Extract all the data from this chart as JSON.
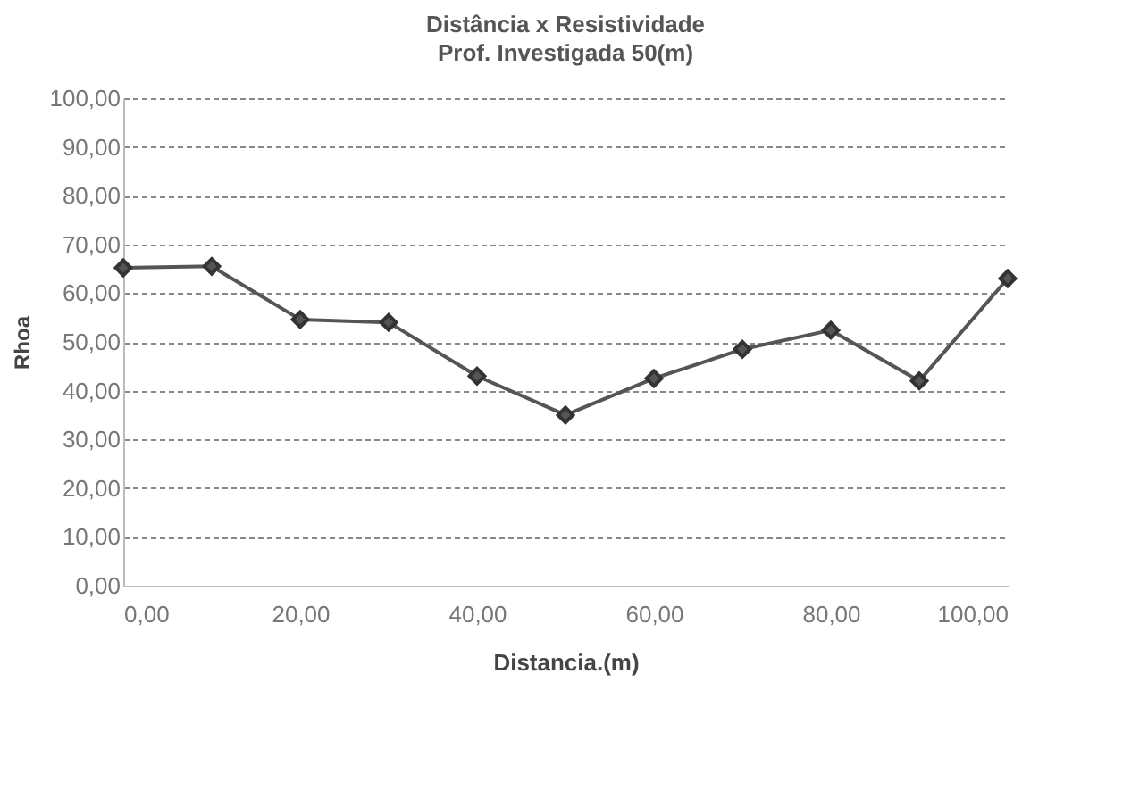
{
  "chart_data": {
    "type": "line",
    "title": "Distância x Resistividade",
    "subtitle": "Prof. Investigada 50(m)",
    "xlabel": "Distancia.(m)",
    "ylabel": "Rhoa",
    "x": [
      0,
      10,
      20,
      30,
      40,
      50,
      60,
      70,
      80,
      90,
      100
    ],
    "series": [
      {
        "color": "#555555",
        "values": [
          65.2,
          65.5,
          54.6,
          54,
          43,
          35,
          42.5,
          48.5,
          52.4,
          42,
          63
        ]
      }
    ],
    "xlim": [
      0,
      100
    ],
    "xticks": [
      {
        "value": 0,
        "label": "0,00"
      },
      {
        "value": 20,
        "label": "20,00"
      },
      {
        "value": 40,
        "label": "40,00"
      },
      {
        "value": 60,
        "label": "60,00"
      },
      {
        "value": 80,
        "label": "80,00"
      },
      {
        "value": 100,
        "label": "100,00"
      }
    ],
    "ylim": [
      0,
      100
    ],
    "yticks": [
      {
        "value": 0,
        "label": "0,00"
      },
      {
        "value": 10,
        "label": "10,00"
      },
      {
        "value": 20,
        "label": "20,00"
      },
      {
        "value": 30,
        "label": "30,00"
      },
      {
        "value": 40,
        "label": "40,00"
      },
      {
        "value": 50,
        "label": "50,00"
      },
      {
        "value": 60,
        "label": "60,00"
      },
      {
        "value": 70,
        "label": "70,00"
      },
      {
        "value": 80,
        "label": "80,00"
      },
      {
        "value": 90,
        "label": "90,00"
      },
      {
        "value": 100,
        "label": "100,00"
      }
    ],
    "grid": "y",
    "marker": "diamond",
    "line_style": "solid"
  }
}
